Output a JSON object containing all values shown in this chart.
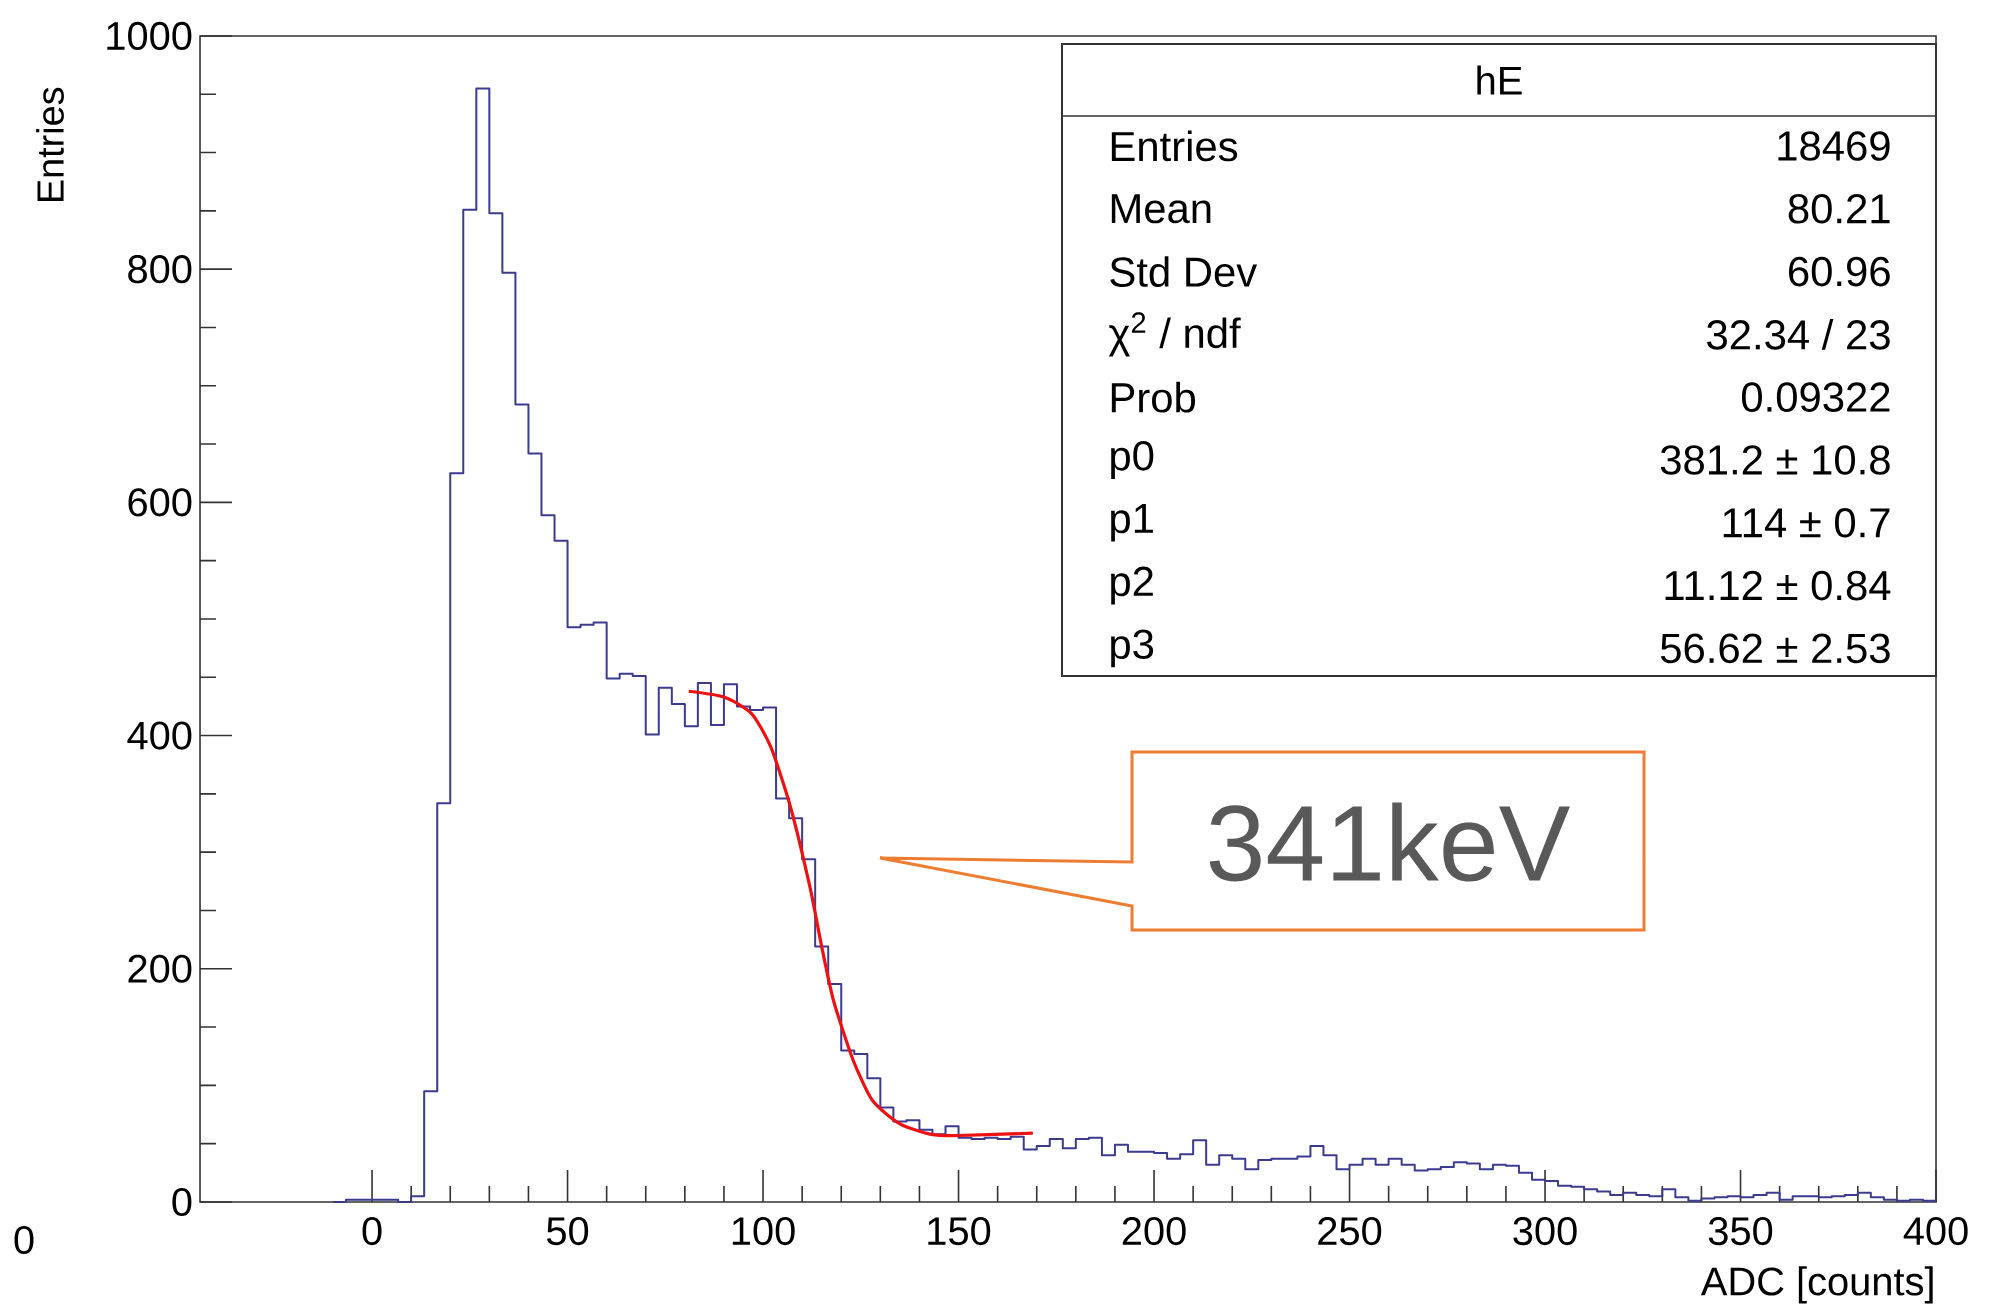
{
  "chart_data": {
    "type": "histogram",
    "color": "#3b3b8f",
    "xlabel": "ADC [counts]",
    "ylabel": "Entries",
    "xlim": [
      -44,
      400
    ],
    "ylim": [
      0,
      1000
    ],
    "xticks": [
      0,
      50,
      100,
      150,
      200,
      250,
      300,
      350,
      400
    ],
    "yticks": [
      0,
      200,
      400,
      600,
      800,
      1000
    ],
    "bins": [
      -10,
      -6.67,
      -3.33,
      0,
      3.33,
      6.67,
      10,
      13.33,
      16.67,
      20,
      23.33,
      26.67,
      30,
      33.33,
      36.67,
      40,
      43.33,
      46.67,
      50,
      53.33,
      56.67,
      60,
      63.33,
      66.67,
      70,
      73.33,
      76.67,
      80,
      83.33,
      86.67,
      90,
      93.33,
      96.67,
      100,
      103.33,
      106.67,
      110,
      113.33,
      116.67,
      120,
      123.33,
      126.67,
      130,
      133.33,
      136.67,
      140,
      143.33,
      146.67,
      150,
      153.33,
      156.67,
      160,
      163.33,
      166.67,
      170,
      173.33,
      176.67,
      180,
      183.33,
      186.67,
      190,
      193.33,
      196.67,
      200,
      203.33,
      206.67,
      210,
      213.33,
      216.67,
      220,
      223.33,
      226.67,
      230,
      233.33,
      236.67,
      240,
      243.33,
      246.67,
      250,
      253.33,
      256.67,
      260,
      263.33,
      266.67,
      270,
      273.33,
      276.67,
      280,
      283.33,
      286.67,
      290,
      293.33,
      296.67,
      300,
      303.33,
      306.67,
      310,
      313.33,
      316.67,
      320,
      323.33,
      326.67,
      330,
      333.33,
      336.67,
      340,
      343.33,
      346.67,
      350,
      353.33,
      356.67,
      360,
      363.33,
      366.67,
      370,
      373.33,
      376.67,
      380,
      383.33,
      386.67,
      390,
      393.33,
      396.67,
      400
    ],
    "values": [
      0,
      2,
      2,
      2,
      2,
      0,
      5,
      95,
      342,
      625,
      851,
      955,
      848,
      797,
      684,
      642,
      589,
      567,
      493,
      495,
      497,
      449,
      453,
      451,
      401,
      441,
      427,
      408,
      445,
      409,
      444,
      425,
      422,
      424,
      346,
      329,
      294,
      219,
      187,
      130,
      127,
      106,
      81,
      69,
      70,
      62,
      58,
      65,
      55,
      54,
      55,
      54,
      56,
      45,
      48,
      54,
      46,
      54,
      55,
      40,
      49,
      43,
      43,
      42,
      37,
      41,
      53,
      32,
      40,
      37,
      28,
      36,
      37,
      37,
      39,
      48,
      40,
      28,
      32,
      37,
      32,
      37,
      32,
      27,
      28,
      30,
      34,
      33,
      28,
      32,
      31,
      25,
      19,
      18,
      14,
      13,
      11,
      9,
      6,
      8,
      6,
      5,
      11,
      4,
      1,
      3,
      4,
      5,
      4,
      6,
      8,
      2,
      5,
      5,
      4,
      5,
      6,
      8,
      4,
      2,
      1,
      2,
      1
    ],
    "series": [
      {
        "type": "line",
        "color": "#ee1111",
        "x": [
          81,
          90,
          97,
          102,
          107,
          112,
          115,
          118,
          123,
          128,
          135,
          143,
          150,
          169
        ],
        "values": [
          438,
          433,
          419,
          390,
          339,
          270,
          219,
          173,
          122,
          87,
          67,
          58,
          57,
          59
        ]
      }
    ],
    "annotations": [
      "341keV",
      "hE",
      "Entries",
      "18469",
      "Mean",
      "80.21",
      "Std Dev",
      "60.96",
      "χ$^{2}$ / ndf",
      "32.34 / 23",
      "Prob",
      "0.09322",
      "p0",
      "381.2 ± 10.8",
      "p1",
      "114 ± 0.7",
      "p2",
      "11.12 ± 0.84",
      "p3",
      "56.62 ± 2.53",
      "0"
    ]
  }
}
